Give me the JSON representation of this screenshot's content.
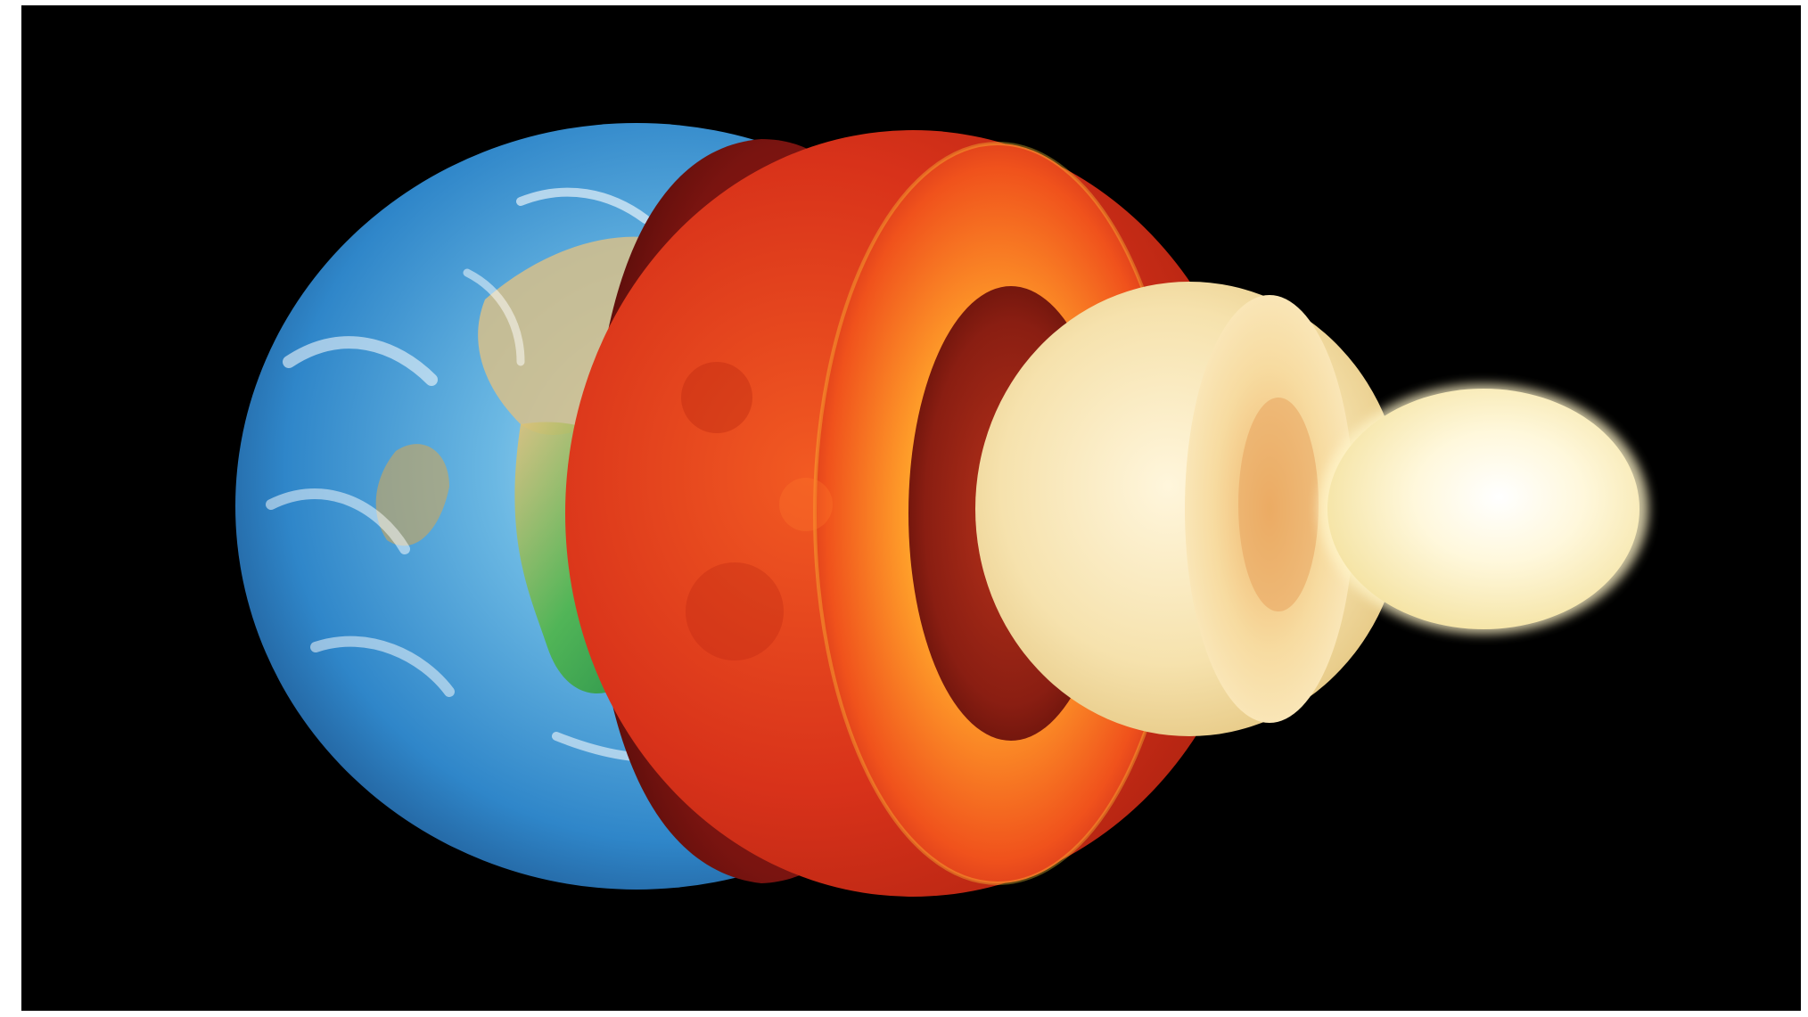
{
  "image": {
    "subject": "earth-layers-cutaway",
    "background_color": "#000000",
    "frame_color": "#ffffff"
  },
  "layers": [
    {
      "name": "crust-surface",
      "colors": [
        "#2f86c9",
        "#9fd3ef",
        "#2ea84a",
        "#d9b35a",
        "#ffffff"
      ]
    },
    {
      "name": "upper-mantle",
      "colors": [
        "#7a1410",
        "#c02814"
      ]
    },
    {
      "name": "lower-mantle",
      "colors": [
        "#d8321a",
        "#ff8a1f",
        "#ffcf3a"
      ]
    },
    {
      "name": "outer-core",
      "colors": [
        "#f4dfa6",
        "#fff2cf",
        "#e9b56a"
      ]
    },
    {
      "name": "inner-core",
      "colors": [
        "#fff8d8",
        "#ffffff",
        "#f6e6a8"
      ]
    }
  ],
  "watermark": {
    "text": "",
    "color": "#d9a23c"
  }
}
